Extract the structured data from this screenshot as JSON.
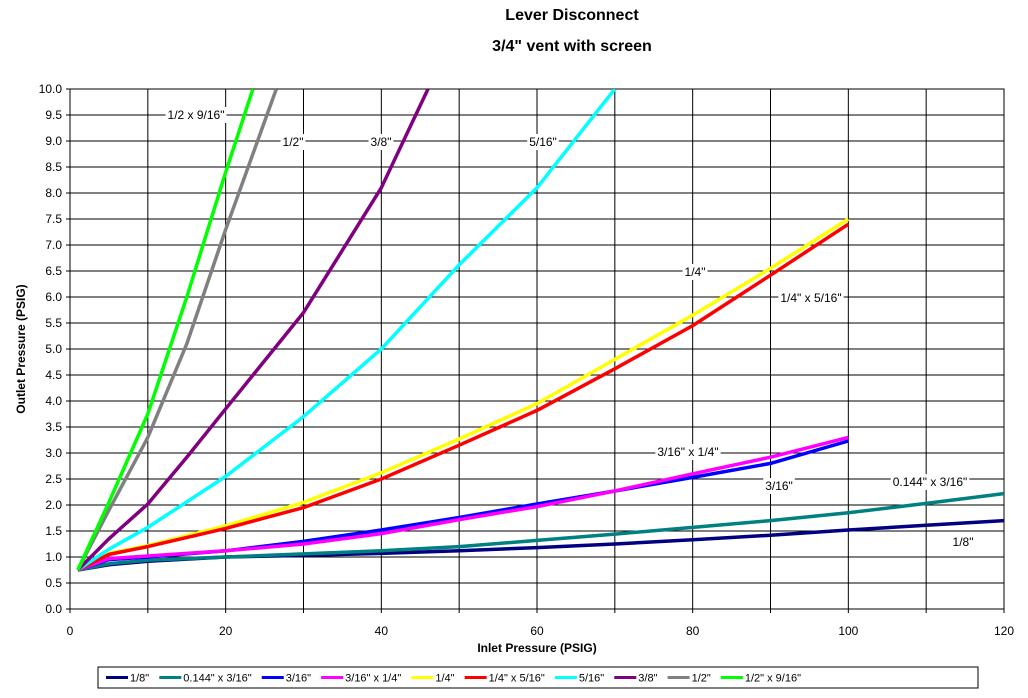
{
  "chart_data": {
    "type": "line",
    "title_line1": "Lever Disconnect",
    "title_line2": "3/4\" vent with screen",
    "xlabel": "Inlet Pressure  (PSIG)",
    "ylabel": "Outlet Pressure  (PSIG)",
    "xlim": [
      0,
      120
    ],
    "ylim": [
      0,
      10
    ],
    "x_ticks": [
      "0",
      "20",
      "40",
      "60",
      "80",
      "100",
      "120"
    ],
    "y_ticks": [
      "0.0",
      "0.5",
      "1.0",
      "1.5",
      "2.0",
      "2.5",
      "3.0",
      "3.5",
      "4.0",
      "4.5",
      "5.0",
      "5.5",
      "6.0",
      "6.5",
      "7.0",
      "7.5",
      "8.0",
      "8.5",
      "9.0",
      "9.5",
      "10.0"
    ],
    "grid": true,
    "legend_position": "bottom",
    "series": [
      {
        "name": "1/8\"",
        "color": "#000080",
        "label": "1/8\"",
        "points": [
          [
            1,
            0.75
          ],
          [
            5,
            0.85
          ],
          [
            10,
            0.92
          ],
          [
            20,
            1.0
          ],
          [
            30,
            1.03
          ],
          [
            40,
            1.07
          ],
          [
            50,
            1.12
          ],
          [
            60,
            1.18
          ],
          [
            70,
            1.25
          ],
          [
            80,
            1.33
          ],
          [
            90,
            1.42
          ],
          [
            100,
            1.52
          ],
          [
            110,
            1.61
          ],
          [
            120,
            1.7
          ]
        ]
      },
      {
        "name": "0.144\" x 3/16\"",
        "color": "#008080",
        "label": "0.144\" x 3/16\"",
        "points": [
          [
            1,
            0.75
          ],
          [
            5,
            0.87
          ],
          [
            10,
            0.94
          ],
          [
            20,
            1.0
          ],
          [
            30,
            1.06
          ],
          [
            40,
            1.12
          ],
          [
            50,
            1.2
          ],
          [
            60,
            1.32
          ],
          [
            70,
            1.44
          ],
          [
            80,
            1.57
          ],
          [
            90,
            1.7
          ],
          [
            100,
            1.85
          ],
          [
            110,
            2.03
          ],
          [
            120,
            2.22
          ]
        ]
      },
      {
        "name": "3/16\"",
        "color": "#0000ff",
        "label": "3/16\"",
        "points": [
          [
            1,
            0.75
          ],
          [
            5,
            0.95
          ],
          [
            10,
            1.0
          ],
          [
            20,
            1.12
          ],
          [
            30,
            1.3
          ],
          [
            40,
            1.52
          ],
          [
            50,
            1.76
          ],
          [
            60,
            2.02
          ],
          [
            70,
            2.27
          ],
          [
            80,
            2.53
          ],
          [
            90,
            2.8
          ],
          [
            100,
            3.23
          ]
        ]
      },
      {
        "name": "3/16\" x 1/4\"",
        "color": "#ff00ff",
        "label": "3/16\" x 1/4\"",
        "points": [
          [
            1,
            0.75
          ],
          [
            5,
            0.97
          ],
          [
            10,
            1.02
          ],
          [
            20,
            1.12
          ],
          [
            30,
            1.25
          ],
          [
            40,
            1.45
          ],
          [
            50,
            1.72
          ],
          [
            60,
            1.97
          ],
          [
            70,
            2.27
          ],
          [
            80,
            2.6
          ],
          [
            90,
            2.92
          ],
          [
            100,
            3.3
          ]
        ]
      },
      {
        "name": "1/4\"",
        "color": "#ffff00",
        "label": "1/4\"",
        "points": [
          [
            1,
            0.75
          ],
          [
            5,
            1.07
          ],
          [
            10,
            1.22
          ],
          [
            20,
            1.6
          ],
          [
            30,
            2.05
          ],
          [
            40,
            2.62
          ],
          [
            50,
            3.27
          ],
          [
            60,
            3.95
          ],
          [
            70,
            4.8
          ],
          [
            80,
            5.65
          ],
          [
            90,
            6.55
          ],
          [
            100,
            7.5
          ]
        ]
      },
      {
        "name": "1/4\" x 5/16\"",
        "color": "#ff0000",
        "label": "1/4\" x 5/16\"",
        "points": [
          [
            1,
            0.75
          ],
          [
            5,
            1.05
          ],
          [
            10,
            1.2
          ],
          [
            20,
            1.55
          ],
          [
            30,
            1.95
          ],
          [
            40,
            2.5
          ],
          [
            50,
            3.15
          ],
          [
            60,
            3.82
          ],
          [
            70,
            4.62
          ],
          [
            80,
            5.45
          ],
          [
            90,
            6.42
          ],
          [
            100,
            7.4
          ]
        ]
      },
      {
        "name": "5/16\"",
        "color": "#00ffff",
        "label": "5/16\"",
        "points": [
          [
            1,
            0.75
          ],
          [
            5,
            1.15
          ],
          [
            10,
            1.57
          ],
          [
            20,
            2.55
          ],
          [
            30,
            3.7
          ],
          [
            40,
            5.0
          ],
          [
            50,
            6.62
          ],
          [
            60,
            8.1
          ],
          [
            70,
            10.0
          ]
        ]
      },
      {
        "name": "3/8\"",
        "color": "#800080",
        "label": "3/8\"",
        "points": [
          [
            1,
            0.75
          ],
          [
            5,
            1.35
          ],
          [
            10,
            2.02
          ],
          [
            15,
            2.92
          ],
          [
            20,
            3.85
          ],
          [
            30,
            5.7
          ],
          [
            40,
            8.1
          ],
          [
            46,
            10.0
          ]
        ]
      },
      {
        "name": "1/2\"",
        "color": "#808080",
        "label": "1/2\"",
        "points": [
          [
            1,
            0.75
          ],
          [
            5,
            1.9
          ],
          [
            10,
            3.3
          ],
          [
            15,
            5.1
          ],
          [
            20,
            7.3
          ],
          [
            26.5,
            10.0
          ]
        ]
      },
      {
        "name": "1/2\" x 9/16\"",
        "color": "#00ff00",
        "label": "1/2 x 9/16\"",
        "points": [
          [
            1,
            0.75
          ],
          [
            5,
            2.05
          ],
          [
            10,
            3.75
          ],
          [
            15,
            6.0
          ],
          [
            20,
            8.4
          ],
          [
            23.5,
            10.0
          ]
        ]
      }
    ]
  }
}
